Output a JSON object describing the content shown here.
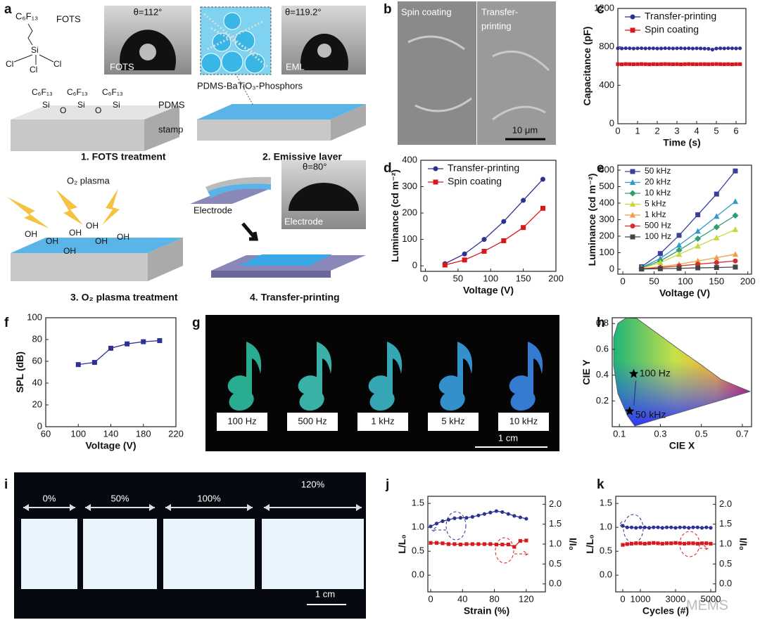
{
  "panels": {
    "a": {
      "label": "a",
      "formula": "C₆F₁₃",
      "fots": "FOTS",
      "si": "Si",
      "cl": "Cl",
      "o": "O",
      "angle1": "θ=112°",
      "angle2": "θ=119.2°",
      "eml": "EML",
      "composite": "PDMS-BaTiO₃-Phosphors",
      "pdms": "PDMS",
      "stamp": "stamp",
      "step1": "1. FOTS treatment",
      "step2": "2. Emissive layer",
      "plasma": "O₂ plasma",
      "oh": "OH",
      "step3": "3. O₂ plasma treatment",
      "angle3": "θ=80°",
      "electrode": "Electrode",
      "step4": "4. Transfer-printing"
    },
    "b": {
      "label": "b",
      "left": "Spin coating",
      "right": [
        "Transfer-",
        "printing"
      ],
      "scale": "10 μm"
    },
    "g": {
      "label": "g",
      "freqs": [
        "100 Hz",
        "500 Hz",
        "1 kHz",
        "5 kHz",
        "10 kHz"
      ],
      "scale": "1 cm"
    },
    "i": {
      "label": "i",
      "strains": [
        "0%",
        "50%",
        "100%",
        "120%"
      ],
      "scale": "1 cm"
    },
    "watermark": "MEMS"
  },
  "chart_data": [
    {
      "label": "c",
      "type": "line",
      "xlabel": "Time (s)",
      "ylabel": "Capacitance (pF)",
      "x": [
        0,
        0.2,
        0.4,
        0.6,
        0.8,
        1,
        1.2,
        1.4,
        1.6,
        1.8,
        2,
        2.2,
        2.4,
        2.6,
        2.8,
        3,
        3.2,
        3.4,
        3.6,
        3.8,
        4,
        4.2,
        4.4,
        4.6,
        4.8,
        5,
        5.2,
        5.4,
        5.6,
        5.8,
        6,
        6.2
      ],
      "xlim": [
        0,
        6.5
      ],
      "xticks": [
        0,
        1,
        2,
        3,
        4,
        5,
        6
      ],
      "ylim": [
        0,
        1200
      ],
      "yticks": [
        0,
        400,
        800,
        1200
      ],
      "legend": "upper left",
      "series": [
        {
          "name": "Transfer-printing",
          "color": "#2e3192",
          "marker": "circle",
          "values": [
            785,
            784,
            786,
            785,
            783,
            785,
            786,
            784,
            785,
            785,
            783,
            784,
            786,
            785,
            784,
            785,
            786,
            784,
            785,
            783,
            785,
            784,
            782,
            780,
            772,
            783,
            785,
            784,
            786,
            785,
            784,
            785
          ]
        },
        {
          "name": "Spin coating",
          "color": "#d7191c",
          "marker": "square",
          "values": [
            620,
            618,
            621,
            620,
            619,
            620,
            621,
            620,
            618,
            620,
            619,
            620,
            621,
            620,
            619,
            620,
            618,
            620,
            621,
            620,
            619,
            620,
            620,
            619,
            620,
            621,
            620,
            619,
            620,
            618,
            620,
            620
          ]
        }
      ]
    },
    {
      "label": "d",
      "type": "line",
      "xlabel": "Voltage (V)",
      "ylabel": "Luminance (cd m⁻²)",
      "x": [
        30,
        60,
        90,
        120,
        150,
        180
      ],
      "xlim": [
        -7,
        200
      ],
      "xticks": [
        0,
        50,
        100,
        150,
        200
      ],
      "ylim": [
        -21,
        400
      ],
      "yticks": [
        0,
        100,
        200,
        300,
        400
      ],
      "legend": "upper left",
      "series": [
        {
          "name": "Transfer-printing",
          "color": "#2e3192",
          "marker": "circle",
          "values": [
            8,
            45,
            100,
            168,
            248,
            328
          ]
        },
        {
          "name": "Spin coating",
          "color": "#d7191c",
          "marker": "square",
          "values": [
            3,
            22,
            55,
            95,
            145,
            218
          ]
        }
      ]
    },
    {
      "label": "e",
      "type": "line",
      "xlabel": "Voltage (V)",
      "ylabel": "Luminance (cd m⁻²)",
      "x": [
        30,
        60,
        90,
        120,
        150,
        180
      ],
      "xlim": [
        -8,
        206
      ],
      "xticks": [
        0,
        50,
        100,
        150,
        200
      ],
      "ylim": [
        -30,
        630
      ],
      "yticks": [
        0,
        100,
        200,
        300,
        400,
        500,
        600
      ],
      "legend": "upper left",
      "series": [
        {
          "name": "50 kHz",
          "color": "#3b3f99",
          "marker": "square",
          "values": [
            15,
            95,
            205,
            330,
            455,
            595
          ]
        },
        {
          "name": "20 kHz",
          "color": "#3399cc",
          "marker": "triangle",
          "values": [
            10,
            65,
            145,
            230,
            320,
            410
          ]
        },
        {
          "name": "10 kHz",
          "color": "#2e9e6e",
          "marker": "diamond",
          "values": [
            8,
            50,
            115,
            185,
            255,
            325
          ]
        },
        {
          "name": "5 kHz",
          "color": "#c8d63a",
          "marker": "triangle",
          "values": [
            5,
            40,
            90,
            140,
            190,
            240
          ]
        },
        {
          "name": "1 kHz",
          "color": "#f0a040",
          "marker": "triangle",
          "values": [
            3,
            15,
            30,
            50,
            70,
            90
          ]
        },
        {
          "name": "500 Hz",
          "color": "#d03030",
          "marker": "circle",
          "values": [
            2,
            10,
            20,
            30,
            40,
            50
          ]
        },
        {
          "name": "100 Hz",
          "color": "#444444",
          "marker": "square",
          "values": [
            1,
            3,
            5,
            8,
            10,
            13
          ]
        }
      ]
    },
    {
      "label": "f",
      "type": "line",
      "xlabel": "Voltage (V)",
      "ylabel": "SPL (dB)",
      "x": [
        100,
        120,
        140,
        160,
        180,
        200
      ],
      "xlim": [
        60,
        220
      ],
      "xticks": [
        60,
        100,
        140,
        180,
        220
      ],
      "ylim": [
        0,
        100
      ],
      "yticks": [
        0,
        20,
        40,
        60,
        80,
        100
      ],
      "series": [
        {
          "color": "#2e3192",
          "marker": "square",
          "values": [
            57,
            59,
            72,
            76,
            78,
            79
          ]
        }
      ]
    },
    {
      "label": "h",
      "type": "scatter",
      "xlabel": "CIE X",
      "ylabel": "CIE Y",
      "x": [
        0.17,
        0.15
      ],
      "values": [
        0.41,
        0.12
      ],
      "point_labels": [
        "100 Hz",
        "50 kHz"
      ],
      "color": "#000000",
      "xlim": [
        0.065,
        0.745
      ],
      "xticks": [
        0.1,
        0.3,
        0.5,
        0.7
      ],
      "ylim": [
        0,
        0.845
      ],
      "yticks": [
        0.2,
        0.4,
        0.6,
        0.8
      ]
    },
    {
      "label": "j",
      "type": "line",
      "xlabel": "Strain (%)",
      "ylabel": "L/L₀",
      "y2label": "I/I₀",
      "x": [
        0,
        7.5,
        15,
        22.5,
        30,
        37.5,
        45,
        52.5,
        60,
        67.5,
        75,
        82.5,
        90,
        97.5,
        105,
        112.5,
        120
      ],
      "xlim": [
        -3.5,
        144
      ],
      "xticks": [
        0,
        40,
        80,
        120
      ],
      "ylim": [
        -0.35,
        1.65
      ],
      "yticks": [
        {
          "value": 0,
          "label": "0.0"
        },
        0.5,
        {
          "value": 1,
          "label": "1.0"
        },
        1.5
      ],
      "y2lim": [
        -0.2,
        2.2
      ],
      "y2ticks": [
        {
          "value": 0,
          "label": "0.0"
        },
        0.5,
        {
          "value": 1,
          "label": "1.0"
        },
        1.5,
        {
          "value": 2,
          "label": "2.0"
        }
      ],
      "series": [
        {
          "color": "#2e3192",
          "marker": "circle",
          "values": [
            1.02,
            1.08,
            1.13,
            1.16,
            1.19,
            1.2,
            1.2,
            1.22,
            1.25,
            1.28,
            1.31,
            1.34,
            1.32,
            1.28,
            1.24,
            1.21,
            1.18
          ]
        },
        {
          "color": "#d7191c",
          "marker": "square",
          "axis": "y2",
          "values": [
            1.03,
            1.03,
            1.02,
            1.0,
            1.0,
            0.99,
            1.0,
            1.0,
            1.0,
            1.0,
            1.0,
            0.99,
            0.99,
            0.99,
            0.93,
            1.08,
            1.09
          ]
        }
      ]
    },
    {
      "label": "k",
      "type": "line",
      "xlabel": "Cycles (#)",
      "ylabel": "L/L₀",
      "y2label": "I/I₀",
      "x": [
        0,
        250,
        500,
        750,
        1000,
        1250,
        1500,
        1750,
        2000,
        2250,
        2500,
        2750,
        3000,
        3250,
        3500,
        3750,
        4000,
        4250,
        4500,
        4750,
        5000
      ],
      "xlim": [
        -400,
        5280
      ],
      "xticks": [
        0,
        1000,
        3000,
        5000
      ],
      "ylim": [
        -0.35,
        1.65
      ],
      "yticks": [
        {
          "value": 0,
          "label": "0.0"
        },
        0.5,
        {
          "value": 1,
          "label": "1.0"
        },
        1.5
      ],
      "y2lim": [
        -0.2,
        2.2
      ],
      "y2ticks": [
        {
          "value": 0,
          "label": "0.0"
        },
        0.5,
        {
          "value": 1,
          "label": "1.0"
        },
        1.5,
        {
          "value": 2,
          "label": "2.0"
        }
      ],
      "series": [
        {
          "color": "#2e3192",
          "marker": "circle",
          "values": [
            1.03,
            1.0,
            1.0,
            0.99,
            1.0,
            1.0,
            0.99,
            1.0,
            1.0,
            0.99,
            1.0,
            1.0,
            0.99,
            1.0,
            1.0,
            0.99,
            1.0,
            1.0,
            0.99,
            1.0,
            0.99
          ]
        },
        {
          "color": "#d7191c",
          "marker": "square",
          "axis": "y2",
          "values": [
            0.98,
            1.0,
            1.01,
            1.02,
            1.02,
            1.01,
            1.02,
            1.03,
            1.02,
            1.01,
            1.02,
            1.02,
            1.03,
            1.02,
            1.01,
            1.02,
            1.02,
            1.01,
            1.02,
            1.02,
            1.01
          ]
        }
      ]
    }
  ]
}
